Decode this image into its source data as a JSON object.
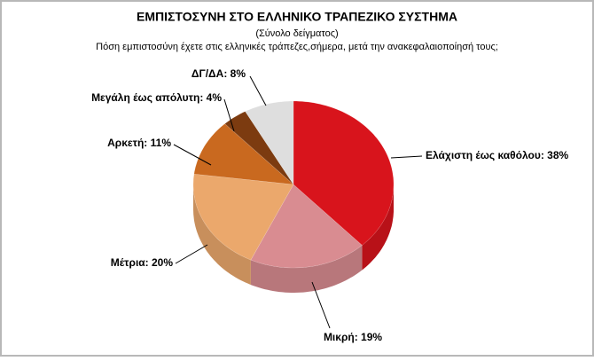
{
  "chart_data": {
    "type": "pie3d",
    "title": "ΕΜΠΙΣΤΟΣΥΝΗ ΣΤΟ  ΕΛΛΗΝΙΚΟ ΤΡΑΠΕΖΙΚΟ ΣΥΣΤΗΜΑ",
    "subtitle": "(Σύνολο δείγματος)",
    "question": "Πόση εμπιστοσύνη έχετε στις ελληνικές τράπεζες,σήμερα, μετά την ανακεφαλαιοποίησή τους;",
    "categories": [
      "Ελάχιστη έως καθόλου: 38%",
      "Μικρή: 19%",
      "Μέτρια: 20%",
      "Αρκετή: 11%",
      "Μεγάλη έως απόλυτη: 4%",
      "ΔΓ/ΔΑ: 8%"
    ],
    "values": [
      38,
      19,
      20,
      11,
      4,
      8
    ],
    "colors": [
      "#d8141c",
      "#d98c91",
      "#eba86c",
      "#c9691f",
      "#7c3b10",
      "#dedede"
    ]
  }
}
